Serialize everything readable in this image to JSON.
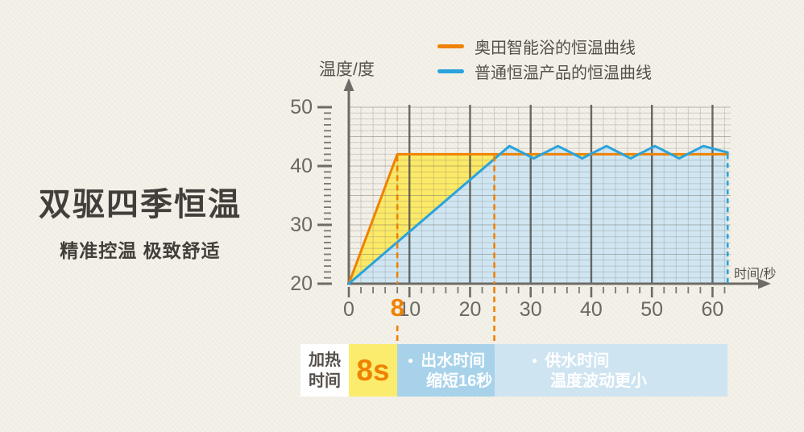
{
  "page": {
    "background": "#f2efe6",
    "text_dark": "#433e3a"
  },
  "headline": {
    "title": "双驱四季恒温",
    "subtitle": "精准控温 极致舒适"
  },
  "legend": [
    {
      "label": "奥田智能浴的恒温曲线",
      "color": "#ef8200"
    },
    {
      "label": "普通恒温产品的恒温曲线",
      "color": "#2aa3dc"
    }
  ],
  "chart_data": {
    "type": "line",
    "title": "",
    "ylabel": "温度/度",
    "xlabel": "时间/秒",
    "xlim": [
      0,
      63
    ],
    "ylim": [
      20,
      50
    ],
    "x_ticks": [
      0,
      10,
      20,
      30,
      40,
      50,
      60
    ],
    "x_tick_highlight": {
      "value": 8,
      "label": "8",
      "color": "#ef8200"
    },
    "y_ticks": [
      20,
      30,
      40,
      50
    ],
    "x_minor_step": 2,
    "y_minor_step": 1,
    "grid": true,
    "legend_position": "top-right",
    "grid_colors": {
      "minor": "rgba(110,105,95,0.25)",
      "major": "rgba(110,105,95,0.45)",
      "dark": "rgba(73,70,64,0.8)",
      "axis": "#6e6b66",
      "minor_tick": "#7b7871"
    },
    "series": [
      {
        "name": "奥田智能浴的恒温曲线",
        "color": "#ef8200",
        "area_color": "#fbe968",
        "points": [
          [
            0,
            20
          ],
          [
            8,
            42
          ],
          [
            62.5,
            42
          ]
        ]
      },
      {
        "name": "普通恒温产品的恒温曲线",
        "color": "#2aa3dc",
        "area_color": "#cfe6f2",
        "points": [
          [
            0,
            20
          ],
          [
            26.5,
            43.4
          ],
          [
            30.5,
            41.3
          ],
          [
            34.5,
            43.4
          ],
          [
            38.5,
            41.3
          ],
          [
            42.5,
            43.4
          ],
          [
            46.5,
            41.3
          ],
          [
            50.5,
            43.4
          ],
          [
            54.5,
            41.3
          ],
          [
            58.5,
            43.4
          ],
          [
            62.5,
            42.3
          ]
        ]
      }
    ],
    "dashed_markers": [
      {
        "x": 8,
        "color": "#ef8200"
      },
      {
        "x": 24,
        "color": "#ef8200"
      }
    ],
    "end_marker": {
      "x": 62.5,
      "color": "#2aa3dc"
    }
  },
  "footer": {
    "label_box": {
      "lines": [
        "加热",
        "时间"
      ]
    },
    "value_box": "8s",
    "value_color": "#ef8200",
    "boxes": [
      {
        "bullet": "●",
        "lines": [
          "出水时间",
          "缩短16秒"
        ],
        "bg": "#a7d2ea"
      },
      {
        "bullet": "●",
        "lines": [
          "供水时间",
          "温度波动更小"
        ],
        "bg": "#cfe4f1"
      }
    ]
  }
}
